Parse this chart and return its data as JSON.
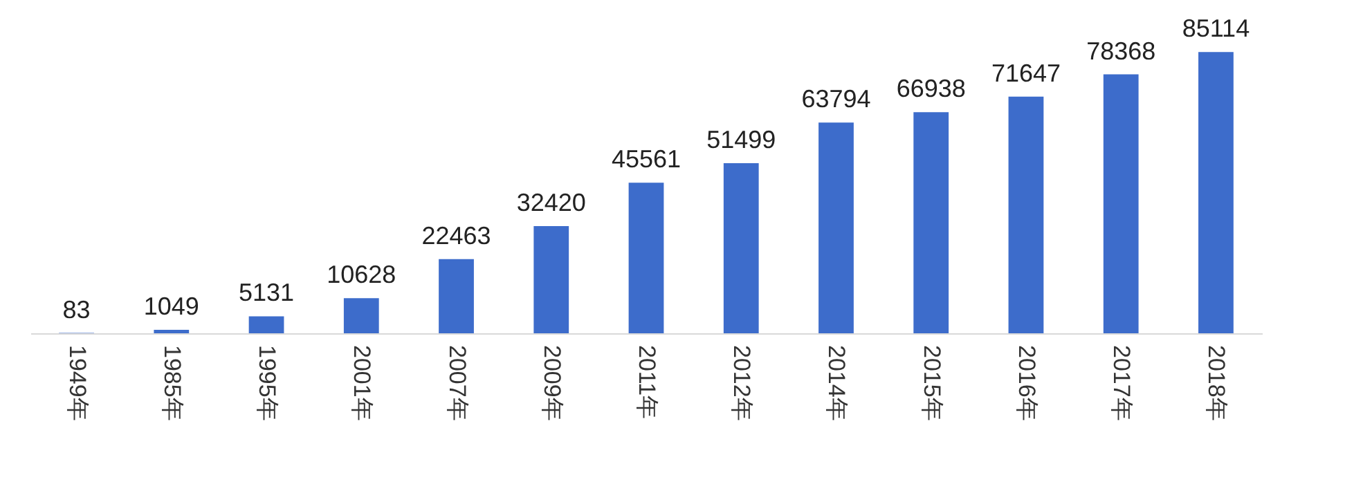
{
  "chart_data": {
    "type": "bar",
    "categories": [
      "1949年",
      "1985年",
      "1995年",
      "2001年",
      "2007年",
      "2009年",
      "2011年",
      "2012年",
      "2014年",
      "2015年",
      "2016年",
      "2017年",
      "2018年"
    ],
    "values": [
      83,
      1049,
      5131,
      10628,
      22463,
      32420,
      45561,
      51499,
      63794,
      66938,
      71647,
      78368,
      85114
    ],
    "color": "#3d6ccb",
    "data_labels": true
  }
}
